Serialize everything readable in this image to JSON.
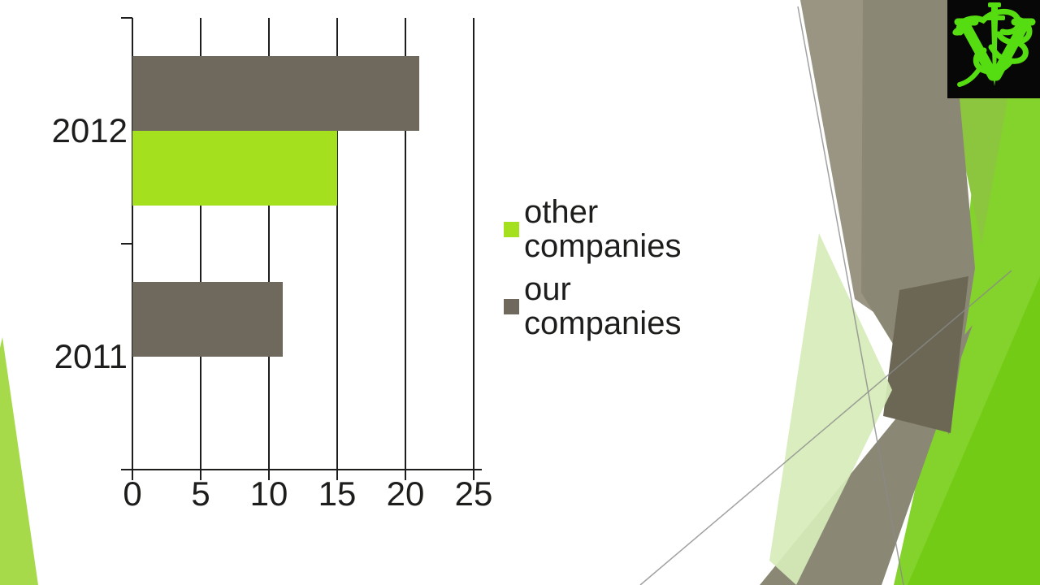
{
  "slide": {
    "background": "#FFFFFF"
  },
  "chart_data": {
    "type": "bar",
    "orientation": "horizontal",
    "title": "",
    "xlabel": "",
    "ylabel": "",
    "categories": [
      "2012",
      "2011"
    ],
    "series": [
      {
        "name": "other companies",
        "color": "#A5E01F",
        "values": [
          15,
          0
        ]
      },
      {
        "name": "our companies",
        "color": "#6F685C",
        "values": [
          21,
          11
        ]
      }
    ],
    "xlim": [
      0,
      25
    ],
    "xticks": [
      0,
      5,
      10,
      15,
      20,
      25
    ],
    "grid": true,
    "legend_position": "right",
    "axis_color": "#1D1D1B",
    "text_color": "#1D1D1B"
  },
  "logo": {
    "icon": "veterinary-caduceus-icon",
    "background": "#070707",
    "color": "#55DD11"
  },
  "decor": {
    "gray": "#8B8775",
    "gray_light": "#9A9583",
    "gray_dark": "#6B6754",
    "green_bright": "#84D22C",
    "green_deep": "#74CB15",
    "green_mid": "#8CC53E",
    "green_pale": "#D7ECBA",
    "wedge_green": "#A6DA4B",
    "line_gray": "#8A8A8A"
  }
}
